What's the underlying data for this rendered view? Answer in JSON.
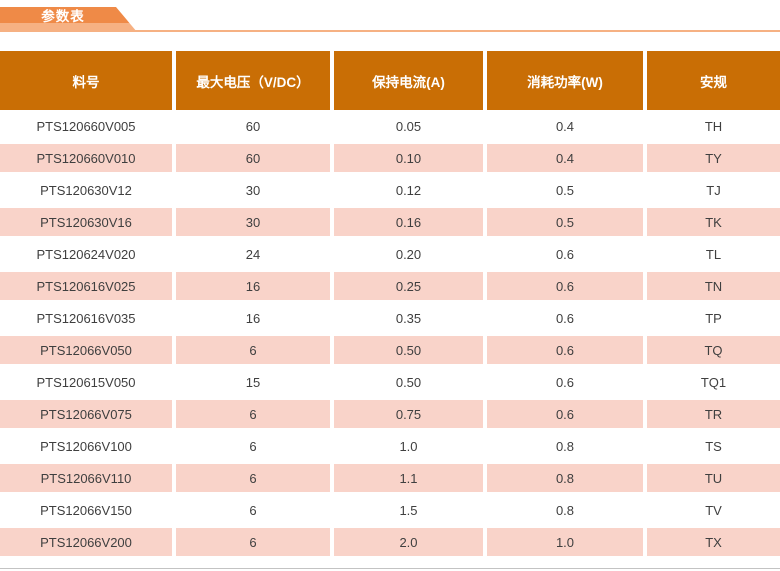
{
  "tab": {
    "label": "参数表"
  },
  "table": {
    "columns": [
      {
        "label": "料号"
      },
      {
        "label": "最大电压（V/DC）"
      },
      {
        "label": "保持电流(A)"
      },
      {
        "label": "消耗功率(W)"
      },
      {
        "label": "安规"
      }
    ],
    "rows": [
      [
        "PTS120660V005",
        "60",
        "0.05",
        "0.4",
        "TH"
      ],
      [
        "PTS120660V010",
        "60",
        "0.10",
        "0.4",
        "TY"
      ],
      [
        "PTS120630V12",
        "30",
        "0.12",
        "0.5",
        "TJ"
      ],
      [
        "PTS120630V16",
        "30",
        "0.16",
        "0.5",
        "TK"
      ],
      [
        "PTS120624V020",
        "24",
        "0.20",
        "0.6",
        "TL"
      ],
      [
        "PTS120616V025",
        "16",
        "0.25",
        "0.6",
        "TN"
      ],
      [
        "PTS120616V035",
        "16",
        "0.35",
        "0.6",
        "TP"
      ],
      [
        "PTS12066V050",
        "6",
        "0.50",
        "0.6",
        "TQ"
      ],
      [
        "PTS120615V050",
        "15",
        "0.50",
        "0.6",
        "TQ1"
      ],
      [
        "PTS12066V075",
        "6",
        "0.75",
        "0.6",
        "TR"
      ],
      [
        "PTS12066V100",
        "6",
        "1.0",
        "0.8",
        "TS"
      ],
      [
        "PTS12066V110",
        "6",
        "1.1",
        "0.8",
        "TU"
      ],
      [
        "PTS12066V150",
        "6",
        "1.5",
        "0.8",
        "TV"
      ],
      [
        "PTS12066V200",
        "6",
        "2.0",
        "1.0",
        "TX"
      ]
    ]
  },
  "colors": {
    "header_bg": "#c96e05",
    "row_alt_bg": "#f9d3c9",
    "tab_dark": "#ef8a47",
    "tab_light": "#f6b183",
    "bottom_rule": "#c3c3c3",
    "text": "#3f3f3f",
    "header_text": "#ffffff"
  }
}
